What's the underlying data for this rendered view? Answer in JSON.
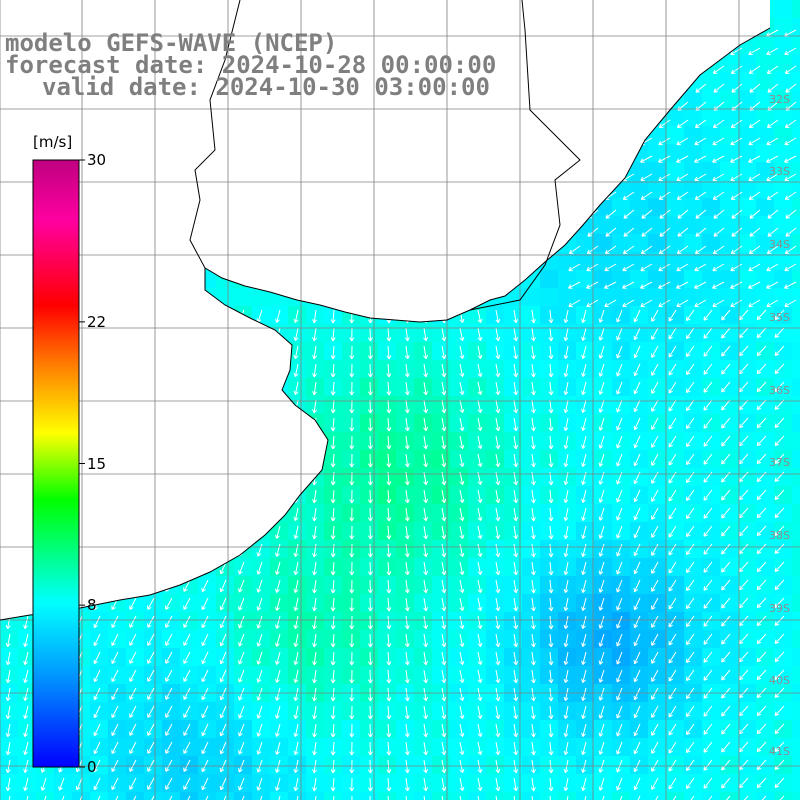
{
  "title": {
    "line1": "modelo GEFS-WAVE (NCEP)",
    "line2": "forecast date: 2024-10-28 00:00:00",
    "line3": "valid date: 2024-10-30 03:00:00"
  },
  "colorbar": {
    "units": "[m/s]",
    "ticks": [
      {
        "value": 30,
        "label": "30"
      },
      {
        "value": 22,
        "label": "22"
      },
      {
        "value": 15,
        "label": "15"
      },
      {
        "value": 8,
        "label": "8"
      },
      {
        "value": 0,
        "label": "0"
      }
    ],
    "min": 0,
    "max": 30,
    "colors": [
      "#0000ff",
      "#00a0ff",
      "#00ffff",
      "#00ff00",
      "#ffff00",
      "#ff8000",
      "#ff0000",
      "#ff00a0",
      "#c00080"
    ]
  },
  "map": {
    "land_color": "#ffffff",
    "coastline_color": "#000000",
    "grid_color": "#808080",
    "arrow_color": "#ffffff",
    "dominant_wind_direction": "south to south-southwest",
    "lat_labels": [
      "32S",
      "33S",
      "34S",
      "35S",
      "36S",
      "37S",
      "38S",
      "39S",
      "40S",
      "41S"
    ]
  }
}
